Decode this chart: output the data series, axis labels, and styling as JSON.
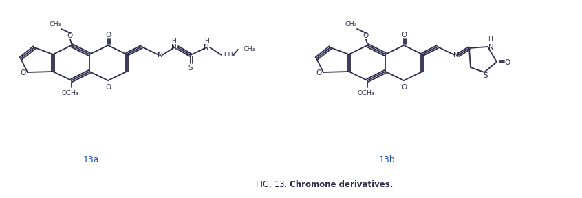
{
  "bg_color": "#ffffff",
  "line_color": "#2b2b4b",
  "fig_width": 8.46,
  "fig_height": 2.88,
  "dpi": 100,
  "label_a": "13a",
  "label_b": "13b",
  "caption_normal": "FIG. 13. ",
  "caption_bold": "Chromone derivatives."
}
